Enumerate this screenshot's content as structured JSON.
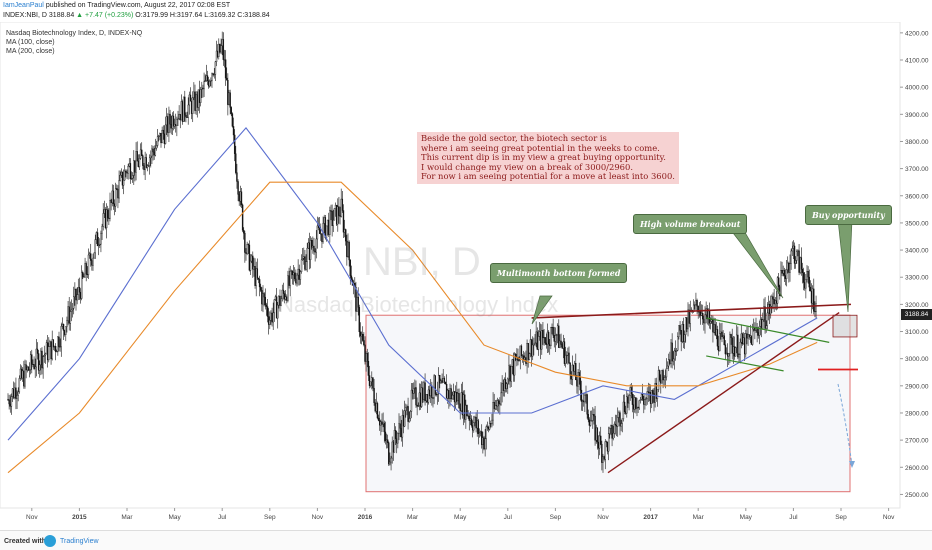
{
  "header": {
    "author": "IamJeanPaul",
    "published": "published on TradingView.com, August 22, 2017 02:08 EST",
    "symbol": "INDEX:NBI, D",
    "last": "3188.84",
    "change": "▲ +7.47 (+0.23%)",
    "o_label": "O:",
    "o": "3179.99",
    "h_label": "H:",
    "h": "3197.64",
    "l_label": "L:",
    "l": "3169.32",
    "c_label": "C:",
    "c": "3188.84"
  },
  "legend": {
    "title": "Nasdaq Biotechnology Index, D, INDEX-NQ",
    "ma100": "MA (100, close)",
    "ma200": "MA (200, close)"
  },
  "watermark": {
    "ticker": "NBI, D",
    "name": "Nasdaq Biotechnology Index"
  },
  "annotations": {
    "note_lines": [
      "Beside the gold sector, the biotech sector is",
      "where i am seeing great potential in the weeks to come.",
      "This current dip is in my view a great buying opportunity.",
      "I would change my view on a break of 3000/2960.",
      "For now i am seeing potential for a move at least into 3600."
    ],
    "multimonth": "Multimonth bottom formed",
    "breakout": "High volume breakout",
    "buy": "Buy opportunity"
  },
  "footer": {
    "created": "Created with",
    "brand": "TradingView"
  },
  "colors": {
    "candle": "#111111",
    "ma100": "#5b6fd0",
    "ma200": "#e88a2a",
    "trend": "#8b1a1a",
    "box_border": "#e07070",
    "wedge": "#3a8a2a",
    "stop": "#e02020",
    "callout": "#7a9e6e",
    "note_bg": "#f6d2d2",
    "price_tag": "#222222",
    "up": "#1e9e3e"
  },
  "chart_data": {
    "type": "candlestick",
    "title": "Nasdaq Biotechnology Index, D, INDEX-NQ",
    "x_axis_ticks": [
      "Nov",
      "2015",
      "Mar",
      "May",
      "Jul",
      "Sep",
      "Nov",
      "2016",
      "Mar",
      "May",
      "Jul",
      "Sep",
      "Nov",
      "2017",
      "Mar",
      "May",
      "Jul",
      "Sep",
      "Nov"
    ],
    "y_axis_ticks": [
      2500,
      2600,
      2700,
      2800,
      2900,
      3000,
      3100,
      3200,
      3300,
      3400,
      3500,
      3600,
      3700,
      3800,
      3900,
      4000,
      4100,
      4200
    ],
    "ylim": [
      2450,
      4240
    ],
    "last_price": "3188.84",
    "series": [
      {
        "name": "NBI",
        "points": [
          [
            "2014-10",
            2850
          ],
          [
            "2014-11",
            2980
          ],
          [
            "2014-12",
            3050
          ],
          [
            "2015-01",
            3250
          ],
          [
            "2015-02",
            3500
          ],
          [
            "2015-03",
            3700
          ],
          [
            "2015-04",
            3750
          ],
          [
            "2015-05",
            3900
          ],
          [
            "2015-06",
            3950
          ],
          [
            "2015-07",
            4150
          ],
          [
            "2015-08",
            3400
          ],
          [
            "2015-09",
            3150
          ],
          [
            "2015-10",
            3300
          ],
          [
            "2015-11",
            3450
          ],
          [
            "2015-12",
            3550
          ],
          [
            "2016-01",
            3000
          ],
          [
            "2016-02",
            2650
          ],
          [
            "2016-03",
            2850
          ],
          [
            "2016-04",
            2900
          ],
          [
            "2016-05",
            2850
          ],
          [
            "2016-06",
            2700
          ],
          [
            "2016-07",
            2950
          ],
          [
            "2016-08",
            3050
          ],
          [
            "2016-09",
            3100
          ],
          [
            "2016-10",
            2900
          ],
          [
            "2016-11",
            2650
          ],
          [
            "2016-12",
            2850
          ],
          [
            "2017-01",
            2850
          ],
          [
            "2017-02",
            3050
          ],
          [
            "2017-03",
            3200
          ],
          [
            "2017-04",
            3050
          ],
          [
            "2017-05",
            3050
          ],
          [
            "2017-06",
            3180
          ],
          [
            "2017-07",
            3400
          ],
          [
            "2017-08",
            3189
          ]
        ]
      },
      {
        "name": "MA (100, close)",
        "points": [
          [
            "2014-10",
            2700
          ],
          [
            "2015-01",
            3000
          ],
          [
            "2015-05",
            3550
          ],
          [
            "2015-08",
            3850
          ],
          [
            "2015-11",
            3500
          ],
          [
            "2016-02",
            3050
          ],
          [
            "2016-05",
            2800
          ],
          [
            "2016-08",
            2800
          ],
          [
            "2016-11",
            2900
          ],
          [
            "2017-02",
            2850
          ],
          [
            "2017-05",
            3000
          ],
          [
            "2017-08",
            3150
          ]
        ]
      },
      {
        "name": "MA (200, close)",
        "points": [
          [
            "2014-10",
            2580
          ],
          [
            "2015-01",
            2800
          ],
          [
            "2015-05",
            3250
          ],
          [
            "2015-09",
            3650
          ],
          [
            "2015-12",
            3650
          ],
          [
            "2016-03",
            3400
          ],
          [
            "2016-06",
            3050
          ],
          [
            "2016-09",
            2950
          ],
          [
            "2016-12",
            2900
          ],
          [
            "2017-03",
            2900
          ],
          [
            "2017-06",
            2980
          ],
          [
            "2017-08",
            3060
          ]
        ]
      }
    ],
    "drawings": {
      "support_box": {
        "price_from": 2510,
        "price_to": 3160,
        "date_from": "2016-01",
        "date_to": "2017-09"
      },
      "resistance_line": {
        "from": [
          "2016-08",
          3150
        ],
        "to": [
          "2017-09",
          3200
        ]
      },
      "rising_trendline": {
        "from": [
          "2016-11",
          2580
        ],
        "to": [
          "2017-08",
          3170
        ]
      },
      "stop_level": 2960,
      "target_zone": [
        3080,
        3160
      ]
    }
  }
}
